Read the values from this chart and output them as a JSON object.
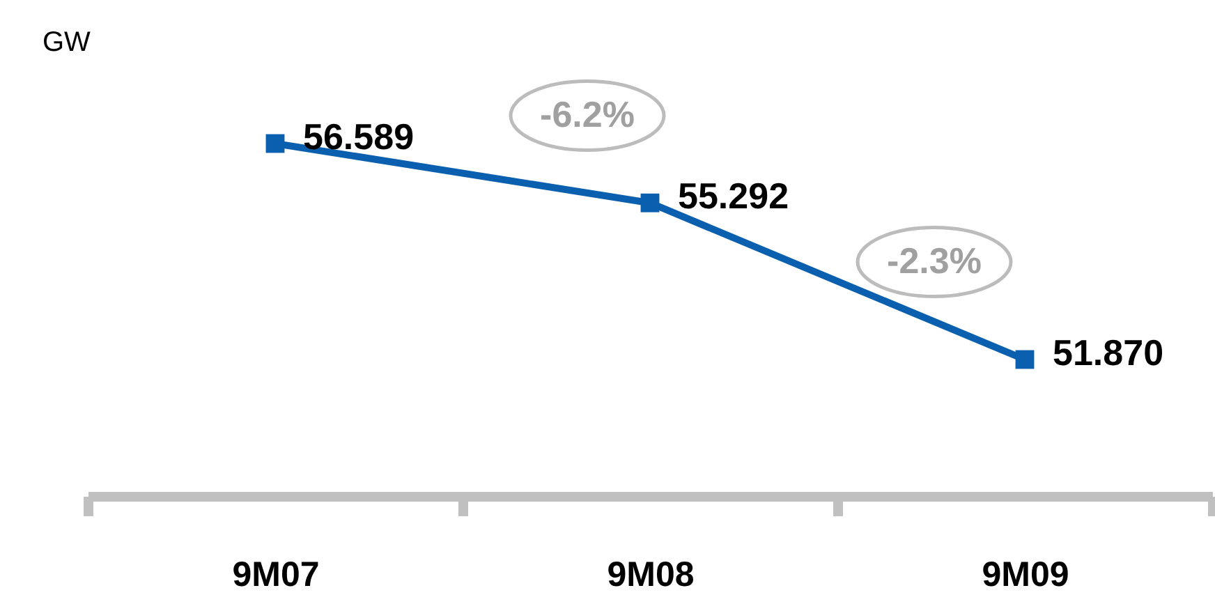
{
  "chart_data": {
    "type": "line",
    "ylabel": "GW",
    "categories": [
      "9M07",
      "9M08",
      "9M09"
    ],
    "series": [
      {
        "color": "#0a5fae",
        "values": [
          56.589,
          55.292,
          51.87
        ],
        "value_labels": [
          "56.589",
          "55.292",
          "51.870"
        ]
      }
    ],
    "marker": "square",
    "annotations": [
      "-6.2%",
      "-2.3%"
    ]
  }
}
